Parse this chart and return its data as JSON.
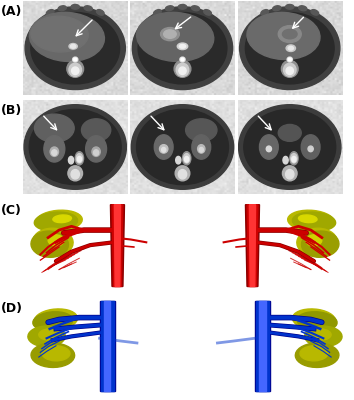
{
  "figure_width": 3.54,
  "figure_height": 4.0,
  "dpi": 100,
  "background_color": "#ffffff",
  "label_A": "(A)",
  "label_B": "(B)",
  "label_C": "(C)",
  "label_D": "(D)",
  "label_fontsize": 9,
  "label_color": "#000000",
  "border_color": "#cccccc",
  "red_vessel": "#cc0000",
  "blue_vessel": "#0033cc",
  "yellow_lobe": "#b8b800"
}
